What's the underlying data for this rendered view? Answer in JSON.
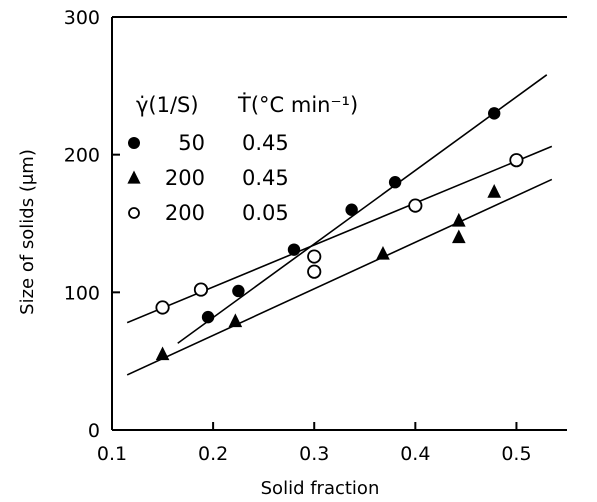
{
  "chart_data": {
    "type": "scatter",
    "xlabel": "Solid fraction",
    "ylabel": "Size of solids (μm)",
    "xlim": [
      0.1,
      0.55
    ],
    "ylim": [
      0,
      300
    ],
    "xticks": [
      "0.1",
      "0.2",
      "0.3",
      "0.4",
      "0.5"
    ],
    "yticks": [
      "0",
      "100",
      "200",
      "300"
    ],
    "grid": false,
    "legend": {
      "placement": "top-left",
      "header_col1": "γ̇(1/S)",
      "header_col2": "Ṫ(°C min⁻¹)"
    },
    "series": [
      {
        "marker": "filled-circle",
        "legend_values": [
          "50",
          "0.45"
        ],
        "points": [
          [
            0.195,
            82
          ],
          [
            0.225,
            101
          ],
          [
            0.28,
            131
          ],
          [
            0.337,
            160
          ],
          [
            0.38,
            180
          ],
          [
            0.478,
            230
          ]
        ],
        "fit": [
          [
            0.165,
            63
          ],
          [
            0.53,
            258
          ]
        ]
      },
      {
        "marker": "filled-triangle",
        "legend_values": [
          "200",
          "0.45"
        ],
        "points": [
          [
            0.15,
            55
          ],
          [
            0.222,
            79
          ],
          [
            0.368,
            128
          ],
          [
            0.443,
            152
          ],
          [
            0.443,
            140
          ],
          [
            0.478,
            173
          ]
        ],
        "fit": [
          [
            0.115,
            40
          ],
          [
            0.535,
            182
          ]
        ]
      },
      {
        "marker": "open-circle",
        "legend_values": [
          "200",
          "0.05"
        ],
        "points": [
          [
            0.15,
            89
          ],
          [
            0.188,
            102
          ],
          [
            0.3,
            126
          ],
          [
            0.3,
            115
          ],
          [
            0.4,
            163
          ],
          [
            0.5,
            196
          ]
        ],
        "fit": [
          [
            0.115,
            78
          ],
          [
            0.535,
            206
          ]
        ]
      }
    ]
  }
}
